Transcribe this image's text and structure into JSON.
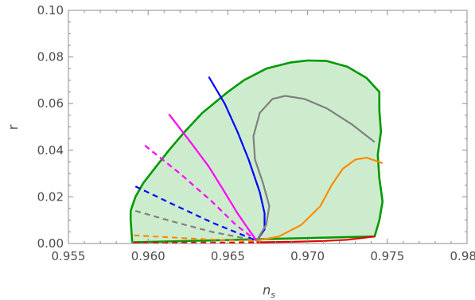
{
  "chart_data": {
    "type": "line",
    "title": "",
    "xlabel": "n",
    "xlabel_subscript": "s",
    "ylabel": "r",
    "xlim": [
      0.955,
      0.98
    ],
    "ylim": [
      0.0,
      0.1
    ],
    "x_ticks": [
      0.955,
      0.96,
      0.965,
      0.97,
      0.975,
      0.98
    ],
    "x_tick_labels": [
      "0.955",
      "0.960",
      "0.965",
      "0.970",
      "0.975",
      "0.980"
    ],
    "y_ticks": [
      0.0,
      0.02,
      0.04,
      0.06,
      0.08,
      0.1
    ],
    "y_tick_labels": [
      "0.00",
      "0.02",
      "0.04",
      "0.06",
      "0.08",
      "0.10"
    ],
    "grid": false,
    "region": {
      "color": "#009900",
      "fill": "#cdeccd",
      "boundary": [
        [
          0.959,
          0.0005
        ],
        [
          0.9589,
          0.01
        ],
        [
          0.9589,
          0.014
        ],
        [
          0.9592,
          0.02
        ],
        [
          0.9597,
          0.026
        ],
        [
          0.9605,
          0.033
        ],
        [
          0.9613,
          0.04
        ],
        [
          0.9623,
          0.048
        ],
        [
          0.9634,
          0.056
        ],
        [
          0.965,
          0.065
        ],
        [
          0.966,
          0.07
        ],
        [
          0.9674,
          0.075
        ],
        [
          0.9689,
          0.0776
        ],
        [
          0.97,
          0.0785
        ],
        [
          0.9712,
          0.0783
        ],
        [
          0.9725,
          0.0758
        ],
        [
          0.9737,
          0.071
        ],
        [
          0.9745,
          0.065
        ],
        [
          0.9745,
          0.057
        ],
        [
          0.9746,
          0.048
        ],
        [
          0.9744,
          0.038
        ],
        [
          0.9745,
          0.028
        ],
        [
          0.9747,
          0.018
        ],
        [
          0.9745,
          0.01
        ],
        [
          0.9742,
          0.003
        ]
      ]
    },
    "series": [
      {
        "color": "#0000ff",
        "dash": "solid",
        "points": [
          [
            0.9638,
            0.0715
          ],
          [
            0.9648,
            0.06
          ],
          [
            0.9656,
            0.048
          ],
          [
            0.9663,
            0.036
          ],
          [
            0.967,
            0.022
          ],
          [
            0.9673,
            0.013
          ],
          [
            0.9673,
            0.006
          ],
          [
            0.9668,
            0.0012
          ]
        ]
      },
      {
        "color": "#ff00ff",
        "dash": "solid",
        "points": [
          [
            0.9613,
            0.0555
          ],
          [
            0.9626,
            0.044
          ],
          [
            0.9638,
            0.033
          ],
          [
            0.9648,
            0.022
          ],
          [
            0.9656,
            0.013
          ],
          [
            0.9663,
            0.006
          ],
          [
            0.9668,
            0.0012
          ]
        ]
      },
      {
        "color": "#808080",
        "dash": "solid",
        "points": [
          [
            0.9668,
            0.0012
          ],
          [
            0.9674,
            0.008
          ],
          [
            0.9676,
            0.016
          ],
          [
            0.9672,
            0.026
          ],
          [
            0.9667,
            0.036
          ],
          [
            0.9666,
            0.046
          ],
          [
            0.967,
            0.056
          ],
          [
            0.9678,
            0.062
          ],
          [
            0.9686,
            0.0633
          ],
          [
            0.9698,
            0.062
          ],
          [
            0.9712,
            0.058
          ],
          [
            0.9728,
            0.051
          ],
          [
            0.9742,
            0.0435
          ]
        ]
      },
      {
        "color": "#ff8c00",
        "dash": "solid",
        "points": [
          [
            0.9668,
            0.0012
          ],
          [
            0.9682,
            0.003
          ],
          [
            0.9696,
            0.008
          ],
          [
            0.9708,
            0.016
          ],
          [
            0.9715,
            0.025
          ],
          [
            0.9722,
            0.032
          ],
          [
            0.973,
            0.036
          ],
          [
            0.9737,
            0.0368
          ],
          [
            0.9747,
            0.0345
          ]
        ]
      },
      {
        "color": "#e60000",
        "dash": "solid",
        "points": [
          [
            0.9668,
            0.0005
          ],
          [
            0.969,
            0.0007
          ],
          [
            0.971,
            0.0011
          ],
          [
            0.9725,
            0.0016
          ],
          [
            0.9742,
            0.003
          ]
        ]
      },
      {
        "color": "#ff00ff",
        "dash": "dashed",
        "points": [
          [
            0.9598,
            0.042
          ],
          [
            0.962,
            0.03
          ],
          [
            0.964,
            0.018
          ],
          [
            0.9655,
            0.008
          ],
          [
            0.9668,
            0.0012
          ]
        ]
      },
      {
        "color": "#0000ff",
        "dash": "dashed",
        "points": [
          [
            0.9592,
            0.0245
          ],
          [
            0.9615,
            0.017
          ],
          [
            0.964,
            0.009
          ],
          [
            0.9668,
            0.0012
          ]
        ]
      },
      {
        "color": "#808080",
        "dash": "dashed",
        "points": [
          [
            0.9592,
            0.014
          ],
          [
            0.9615,
            0.0095
          ],
          [
            0.964,
            0.005
          ],
          [
            0.9668,
            0.0012
          ]
        ]
      },
      {
        "color": "#ff8c00",
        "dash": "dashed",
        "points": [
          [
            0.9591,
            0.0035
          ],
          [
            0.962,
            0.0024
          ],
          [
            0.9645,
            0.0015
          ],
          [
            0.9668,
            0.001
          ]
        ]
      },
      {
        "color": "#e60000",
        "dash": "dashed",
        "points": [
          [
            0.9591,
            0.0004
          ],
          [
            0.963,
            0.0004
          ],
          [
            0.9668,
            0.0004
          ]
        ]
      }
    ]
  }
}
